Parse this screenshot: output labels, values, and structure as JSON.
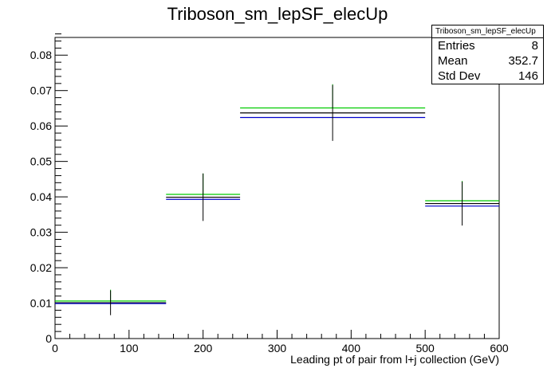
{
  "chart_data": {
    "type": "histogram",
    "title": "Triboson_sm_lepSF_elecUp",
    "xlabel": "Leading pt of pair from l+j collection (GeV)",
    "ylabel": "",
    "xlim": [
      0,
      600
    ],
    "ylim": [
      0,
      0.085
    ],
    "x_ticks": [
      0,
      100,
      200,
      300,
      400,
      500,
      600
    ],
    "y_ticks": [
      0,
      0.01,
      0.02,
      0.03,
      0.04,
      0.05,
      0.06,
      0.07,
      0.08
    ],
    "x_tick_labels": [
      "0",
      "100",
      "200",
      "300",
      "400",
      "500",
      "600"
    ],
    "y_tick_labels": [
      "0",
      "0.01",
      "0.02",
      "0.03",
      "0.04",
      "0.05",
      "0.06",
      "0.07",
      "0.08"
    ],
    "bins": [
      [
        0,
        150
      ],
      [
        150,
        250
      ],
      [
        250,
        500
      ],
      [
        500,
        600
      ]
    ],
    "bin_centers": [
      75,
      200,
      375,
      550
    ],
    "series": [
      {
        "color": "#00cc00",
        "values": [
          0.0106,
          0.0407,
          0.0651,
          0.0389
        ]
      },
      {
        "color": "#000000",
        "values": [
          0.0101,
          0.0399,
          0.0637,
          0.0381
        ],
        "errors": [
          0.0035,
          0.0067,
          0.0079,
          0.0062
        ]
      },
      {
        "color": "#0000cc",
        "values": [
          0.0099,
          0.0393,
          0.0624,
          0.0374
        ]
      }
    ],
    "green_error_tops": [
      0.0138,
      0.0466,
      0.0718,
      0.0445
    ],
    "grid": false,
    "stats": {
      "title": "Triboson_sm_lepSF_elecUp",
      "entries_label": "Entries",
      "entries": "8",
      "mean_label": "Mean",
      "mean": "352.7",
      "stddev_label": "Std Dev",
      "stddev": "146"
    }
  }
}
